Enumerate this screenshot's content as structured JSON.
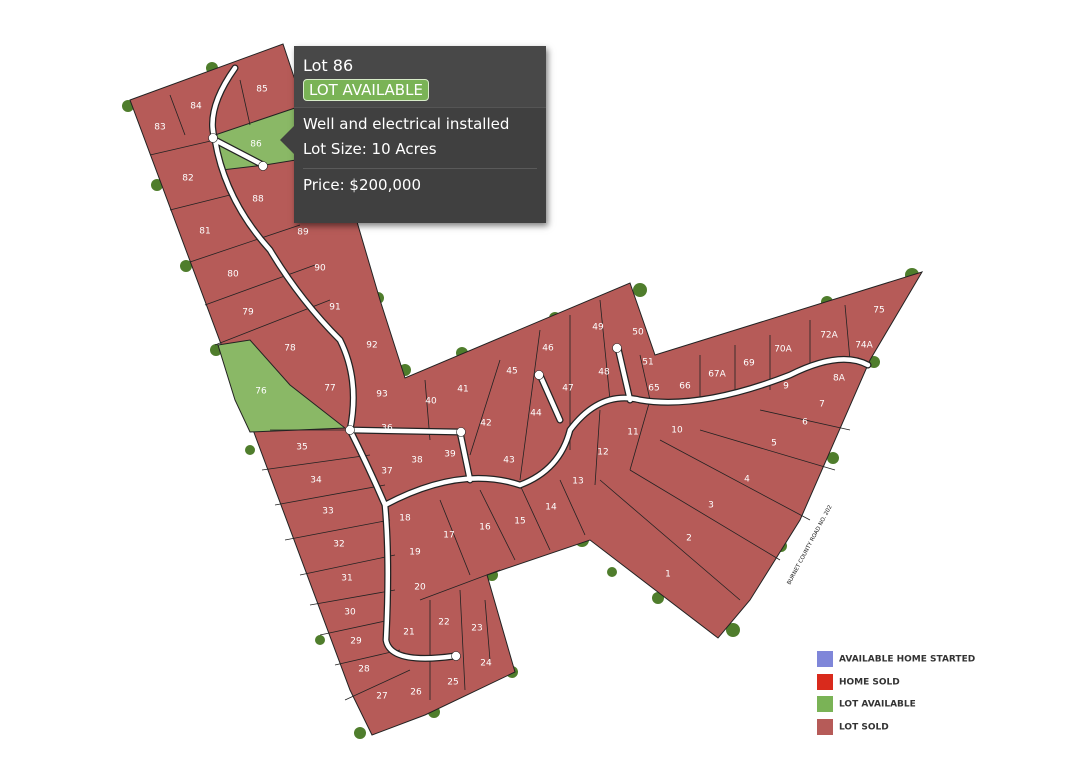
{
  "tooltip": {
    "title": "Lot 86",
    "badge": "LOT AVAILABLE",
    "details": [
      "Well and electrical installed",
      "Lot Size: 10 Acres"
    ],
    "price": "Price: $200,000"
  },
  "road_label": "BURNET COUNTY ROAD NO. 202",
  "lots": [
    "83",
    "84",
    "85",
    "86",
    "82",
    "88",
    "89",
    "81",
    "90",
    "80",
    "91",
    "79",
    "78",
    "92",
    "76",
    "77",
    "93",
    "40",
    "41",
    "45",
    "46",
    "49",
    "50",
    "51",
    "48",
    "47",
    "65",
    "66",
    "67A",
    "69",
    "70A",
    "72A",
    "75",
    "74A",
    "8A",
    "9",
    "7",
    "6",
    "10",
    "11",
    "12",
    "44",
    "42",
    "36",
    "35",
    "39",
    "38",
    "37",
    "43",
    "5",
    "4",
    "3",
    "2",
    "1",
    "13",
    "14",
    "15",
    "16",
    "17",
    "18",
    "34",
    "33",
    "32",
    "19",
    "31",
    "20",
    "30",
    "22",
    "23",
    "21",
    "29",
    "28",
    "24",
    "25",
    "26",
    "27"
  ],
  "legend": [
    {
      "label": "AVAILABLE HOME STARTED",
      "color": "#7f86d9"
    },
    {
      "label": "HOME SOLD",
      "color": "#d92a1c"
    },
    {
      "label": "LOT AVAILABLE",
      "color": "#7ab356"
    },
    {
      "label": "LOT SOLD",
      "color": "#b65b58"
    }
  ]
}
